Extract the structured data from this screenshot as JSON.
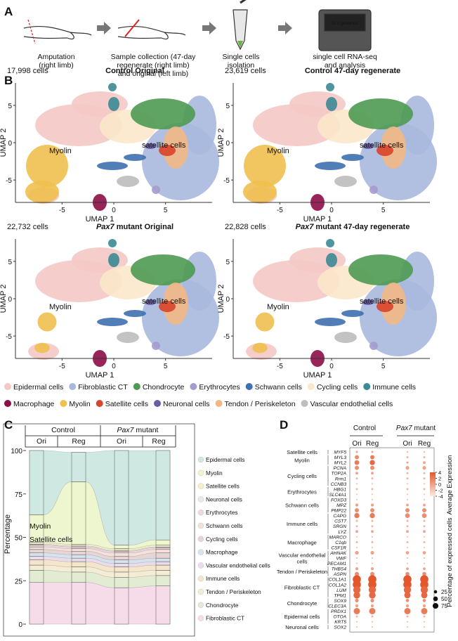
{
  "panel_labels": [
    "A",
    "B",
    "C",
    "D"
  ],
  "workflow": {
    "steps": [
      {
        "lines": [
          "Amputation",
          "(right limb)"
        ]
      },
      {
        "lines": [
          "Sample collection (47-day",
          "regenerate (right limb)",
          "and original (left limb)"
        ]
      },
      {
        "lines": [
          "Single cells",
          "isolation"
        ]
      },
      {
        "lines": [
          "single cell RNA-seq",
          "and analysis"
        ]
      }
    ],
    "machine_label": "10 x genomics"
  },
  "umap": {
    "x_label": "UMAP 1",
    "y_label": "UMAP 2",
    "xlim": [
      -9.5,
      9.5
    ],
    "ylim": [
      -8,
      8
    ],
    "xticks": [
      -5,
      0,
      5
    ],
    "yticks": [
      -5,
      0,
      5
    ],
    "annotations": [
      "Myolin",
      "satellite cells"
    ],
    "panels": [
      {
        "count": "17,998 cells",
        "title_em": "",
        "title": "Control Original"
      },
      {
        "count": "23,619 cells",
        "title_em": "",
        "title": "Control 47-day regenerate"
      },
      {
        "count": "22,732 cells",
        "title_em": "Pax7",
        "title": " mutant Original"
      },
      {
        "count": "22,828 cells",
        "title_em": "Pax7",
        "title": " mutant 47-day regenerate"
      }
    ],
    "legend": [
      {
        "name": "Epidermal cells",
        "color": "#f4c9c5"
      },
      {
        "name": "Fibroblastic CT",
        "color": "#a9b9de"
      },
      {
        "name": "Chondrocyte",
        "color": "#4e9a52"
      },
      {
        "name": "Erythrocytes",
        "color": "#a69bcf"
      },
      {
        "name": "Schwann cells",
        "color": "#3f70b0"
      },
      {
        "name": "Cycling cells",
        "color": "#fbe8cb"
      },
      {
        "name": "Immune cells",
        "color": "#3b8a95"
      },
      {
        "name": "Macrophage",
        "color": "#8c0d48"
      },
      {
        "name": "Myolin",
        "color": "#f0c04f"
      },
      {
        "name": "Satellite cells",
        "color": "#d9442a"
      },
      {
        "name": "Neuronal cells",
        "color": "#6a5aa8"
      },
      {
        "name": "Tendon / Periskeleton",
        "color": "#f3b784"
      },
      {
        "name": "Vascular endothelial cells",
        "color": "#bdbdbd"
      }
    ]
  },
  "chart_data": {
    "type": "alluvial",
    "y_label": "Percentage",
    "groups": [
      {
        "name": "Control",
        "name_em": ""
      },
      {
        "name": " mutant",
        "name_em": "Pax7"
      }
    ],
    "categories": [
      "Ori",
      "Reg",
      "Ori",
      "Reg"
    ],
    "ylim": [
      0,
      100
    ],
    "yticks": [
      0,
      25,
      50,
      75,
      100
    ],
    "annotations": [
      "Myolin",
      "Satellite cells"
    ],
    "series": [
      {
        "name": "Epidermal cells",
        "color": "#cfe8e2",
        "values": [
          37,
          17,
          54.5,
          51.5
        ]
      },
      {
        "name": "Myolin",
        "color": "#eef6cf",
        "values": [
          16,
          36,
          2,
          3
        ]
      },
      {
        "name": "Satellite cells",
        "color": "#f6f0c6",
        "values": [
          1,
          1,
          1,
          1
        ]
      },
      {
        "name": "Neuronal cells",
        "color": "#e9e9ee",
        "values": [
          0.5,
          0.5,
          0.5,
          0.5
        ]
      },
      {
        "name": "Erythrocytes",
        "color": "#f1d8de",
        "values": [
          1,
          1,
          1,
          1
        ]
      },
      {
        "name": "Schwann cells",
        "color": "#f6e1da",
        "values": [
          1.5,
          1.5,
          2,
          2
        ]
      },
      {
        "name": "Cycling cells",
        "color": "#e7d5d5",
        "values": [
          2,
          2,
          2,
          3
        ]
      },
      {
        "name": "Macrophage",
        "color": "#d6e2ee",
        "values": [
          2,
          2,
          2,
          2
        ]
      },
      {
        "name": "Vascular endothelial cells",
        "color": "#eadceb",
        "values": [
          2,
          2,
          2,
          2
        ]
      },
      {
        "name": "Immune cells",
        "color": "#f4e5cb",
        "values": [
          3,
          3,
          3,
          3
        ]
      },
      {
        "name": "Tendon / Periskeleton",
        "color": "#f5ecd4",
        "values": [
          3,
          3,
          3,
          3
        ]
      },
      {
        "name": "Chondrocyte",
        "color": "#e2ecd2",
        "values": [
          7,
          6,
          6,
          6
        ]
      },
      {
        "name": "Fibroblastic CT",
        "color": "#f6dbe9",
        "values": [
          24,
          24,
          21,
          22
        ]
      }
    ]
  },
  "dotplot": {
    "groups": [
      {
        "name": "Control",
        "name_em": ""
      },
      {
        "name": " mutant",
        "name_em": "Pax7"
      }
    ],
    "columns": [
      "Ori",
      "Reg",
      "Ori",
      "Reg"
    ],
    "color_title": "Average Expression",
    "color_ticks": [
      4,
      2,
      0,
      -2,
      -4
    ],
    "colors": [
      "#fdebe1",
      "#e4562c"
    ],
    "size_title": "Percentage of expressed cells",
    "size_ticks": [
      25,
      50,
      75
    ],
    "cell_types": [
      {
        "label": [
          "Satellite cells"
        ],
        "genes": [
          {
            "name": "MYF5",
            "pct": [
              5,
              5,
              3,
              3
            ],
            "expr": [
              0,
              0,
              -1,
              -1
            ]
          }
        ]
      },
      {
        "label": [
          "Myolin"
        ],
        "genes": [
          {
            "name": "MYL3",
            "pct": [
              20,
              20,
              5,
              5
            ],
            "expr": [
              1,
              2,
              -1,
              -1
            ]
          },
          {
            "name": "MYL2",
            "pct": [
              25,
              30,
              5,
              8
            ],
            "expr": [
              2,
              3,
              0,
              0
            ]
          }
        ]
      },
      {
        "label": [
          "Cycling cells"
        ],
        "genes": [
          {
            "name": "PCNA",
            "pct": [
              20,
              20,
              15,
              15
            ],
            "expr": [
              1,
              1,
              0,
              0
            ]
          },
          {
            "name": "TOP2A",
            "pct": [
              8,
              8,
              5,
              5
            ],
            "expr": [
              0,
              0,
              -1,
              -1
            ]
          },
          {
            "name": "Rrm1",
            "pct": [
              5,
              5,
              5,
              5
            ],
            "expr": [
              -1,
              -1,
              -1,
              -1
            ]
          },
          {
            "name": "CCNB3",
            "pct": [
              3,
              3,
              3,
              3
            ],
            "expr": [
              -2,
              -2,
              -2,
              -2
            ]
          }
        ]
      },
      {
        "label": [
          "Erythrocytes"
        ],
        "genes": [
          {
            "name": "HBG1",
            "pct": [
              5,
              5,
              5,
              5
            ],
            "expr": [
              -1,
              -1,
              -1,
              -1
            ]
          },
          {
            "name": "SLC4A1",
            "pct": [
              3,
              3,
              3,
              3
            ],
            "expr": [
              -2,
              -2,
              -2,
              -2
            ]
          }
        ]
      },
      {
        "label": [
          "Schwann cells"
        ],
        "genes": [
          {
            "name": "FOXD3",
            "pct": [
              3,
              3,
              3,
              3
            ],
            "expr": [
              -2,
              -2,
              -2,
              -2
            ]
          },
          {
            "name": "MPZ",
            "pct": [
              10,
              10,
              8,
              8
            ],
            "expr": [
              0,
              0,
              0,
              0
            ]
          },
          {
            "name": "PMP22",
            "pct": [
              20,
              20,
              20,
              20
            ],
            "expr": [
              1,
              1,
              1,
              1
            ]
          }
        ]
      },
      {
        "label": [
          "Immune cells"
        ],
        "genes": [
          {
            "name": "CAPG",
            "pct": [
              30,
              30,
              25,
              25
            ],
            "expr": [
              2,
              2,
              1,
              1
            ]
          },
          {
            "name": "CST7",
            "pct": [
              5,
              5,
              5,
              5
            ],
            "expr": [
              -1,
              -1,
              -1,
              -1
            ]
          },
          {
            "name": "SRGN",
            "pct": [
              5,
              5,
              5,
              5
            ],
            "expr": [
              -1,
              -1,
              -1,
              -1
            ]
          },
          {
            "name": "LYZ",
            "pct": [
              8,
              8,
              8,
              8
            ],
            "expr": [
              0,
              0,
              0,
              0
            ]
          }
        ]
      },
      {
        "label": [
          "Macrophage"
        ],
        "genes": [
          {
            "name": "MARCO",
            "pct": [
              3,
              3,
              3,
              3
            ],
            "expr": [
              -2,
              -2,
              -2,
              -2
            ]
          },
          {
            "name": "C1qb",
            "pct": [
              5,
              5,
              5,
              5
            ],
            "expr": [
              -1,
              -1,
              -1,
              -1
            ]
          },
          {
            "name": "CSF1R",
            "pct": [
              3,
              3,
              3,
              3
            ],
            "expr": [
              -2,
              -2,
              -2,
              -2
            ]
          }
        ]
      },
      {
        "label": [
          "Vascular endothelial",
          "cells"
        ],
        "genes": [
          {
            "name": "AHNAK",
            "pct": [
              15,
              15,
              12,
              12
            ],
            "expr": [
              0,
              0,
              0,
              0
            ]
          },
          {
            "name": "VWF",
            "pct": [
              3,
              3,
              3,
              3
            ],
            "expr": [
              -2,
              -2,
              -2,
              -2
            ]
          },
          {
            "name": "PECAM1",
            "pct": [
              3,
              3,
              3,
              3
            ],
            "expr": [
              -2,
              -2,
              -2,
              -2
            ]
          }
        ]
      },
      {
        "label": [
          "Tendon / Periskeleton"
        ],
        "genes": [
          {
            "name": "THBS4",
            "pct": [
              10,
              10,
              8,
              8
            ],
            "expr": [
              0,
              0,
              0,
              0
            ]
          },
          {
            "name": "ASPN",
            "pct": [
              20,
              20,
              18,
              18
            ],
            "expr": [
              1,
              1,
              1,
              1
            ]
          }
        ]
      },
      {
        "label": [
          "Fibroblastic CT"
        ],
        "genes": [
          {
            "name": "COL1A1",
            "pct": [
              75,
              75,
              75,
              75
            ],
            "expr": [
              4,
              4,
              4,
              4
            ]
          },
          {
            "name": "COL1A2",
            "pct": [
              75,
              75,
              75,
              75
            ],
            "expr": [
              4,
              4,
              4,
              4
            ]
          },
          {
            "name": "LUM",
            "pct": [
              60,
              60,
              60,
              60
            ],
            "expr": [
              3,
              3,
              3,
              3
            ]
          },
          {
            "name": "TPM1",
            "pct": [
              50,
              50,
              45,
              45
            ],
            "expr": [
              3,
              3,
              3,
              3
            ]
          }
        ]
      },
      {
        "label": [
          "Chondrocyte"
        ],
        "genes": [
          {
            "name": "SOX9",
            "pct": [
              15,
              15,
              12,
              12
            ],
            "expr": [
              1,
              1,
              1,
              1
            ]
          },
          {
            "name": "CLEC3A",
            "pct": [
              10,
              10,
              10,
              10
            ],
            "expr": [
              0,
              0,
              0,
              0
            ]
          }
        ]
      },
      {
        "label": [
          "Epidermal cells"
        ],
        "genes": [
          {
            "name": "PRDX1",
            "pct": [
              45,
              45,
              45,
              45
            ],
            "expr": [
              2,
              2,
              2,
              2
            ]
          },
          {
            "name": "OTOA",
            "pct": [
              5,
              5,
              5,
              5
            ],
            "expr": [
              -1,
              -1,
              -1,
              -1
            ]
          },
          {
            "name": "KRT5",
            "pct": [
              3,
              3,
              3,
              3
            ],
            "expr": [
              -2,
              -2,
              -2,
              -2
            ]
          }
        ]
      },
      {
        "label": [
          "Neuronal cells"
        ],
        "genes": [
          {
            "name": "SOX2",
            "pct": [
              3,
              3,
              3,
              3
            ],
            "expr": [
              -2,
              -2,
              -2,
              -2
            ]
          }
        ]
      }
    ]
  }
}
